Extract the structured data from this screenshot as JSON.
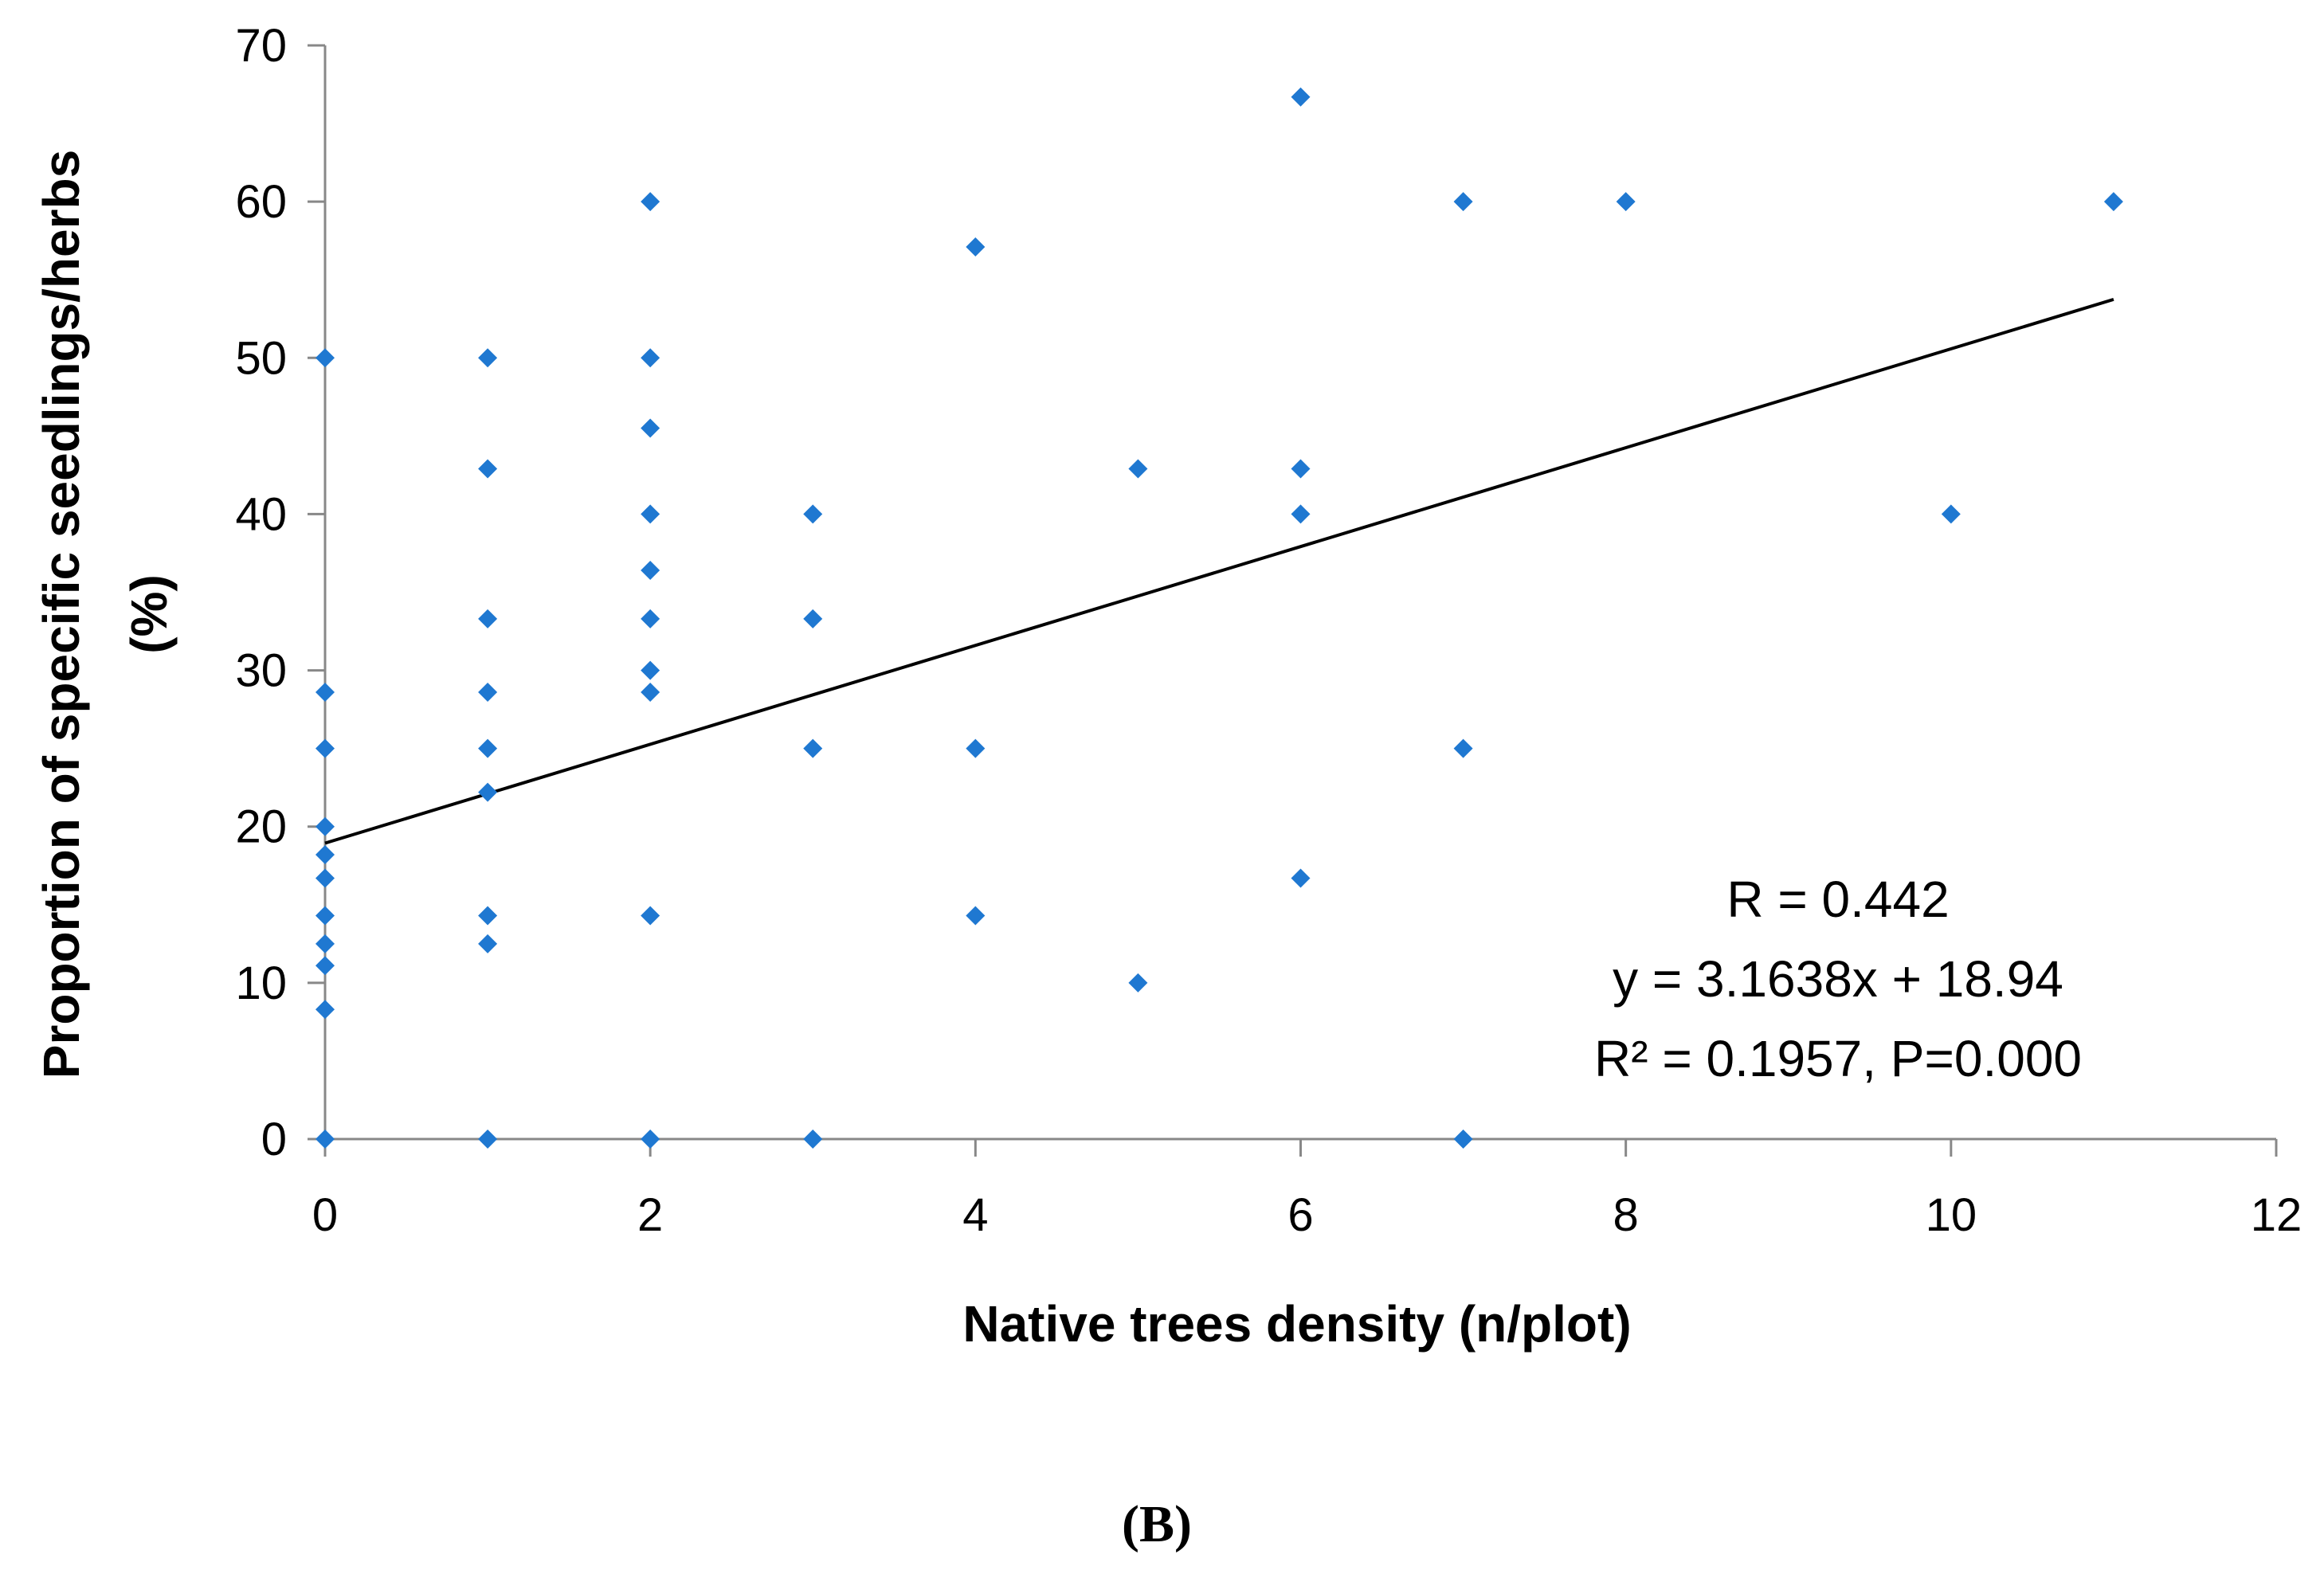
{
  "chart_data": {
    "type": "scatter",
    "title": "",
    "xlabel": "Native trees density (n/plot)",
    "ylabel_line1": "Proportion of specific seedlings/herbs",
    "ylabel_line2": "(%)",
    "xlim": [
      0,
      12
    ],
    "ylim": [
      0,
      70
    ],
    "x_ticks": [
      0,
      2,
      4,
      6,
      8,
      10,
      12
    ],
    "y_ticks": [
      0,
      10,
      20,
      30,
      40,
      50,
      60,
      70
    ],
    "grid": false,
    "marker_color": "#1F78D1",
    "line_color": "#000000",
    "points": [
      [
        0,
        50
      ],
      [
        0,
        28.6
      ],
      [
        0,
        25
      ],
      [
        0,
        20
      ],
      [
        0,
        18.2
      ],
      [
        0,
        16.7
      ],
      [
        0,
        14.3
      ],
      [
        0,
        12.5
      ],
      [
        0,
        11.1
      ],
      [
        0,
        8.3
      ],
      [
        0,
        0
      ],
      [
        1,
        50
      ],
      [
        1,
        42.9
      ],
      [
        1,
        33.3
      ],
      [
        1,
        28.6
      ],
      [
        1,
        25
      ],
      [
        1,
        22.2
      ],
      [
        1,
        14.3
      ],
      [
        1,
        12.5
      ],
      [
        1,
        0
      ],
      [
        2,
        60
      ],
      [
        2,
        50
      ],
      [
        2,
        45.5
      ],
      [
        2,
        40
      ],
      [
        2,
        36.4
      ],
      [
        2,
        33.3
      ],
      [
        2,
        30
      ],
      [
        2,
        28.6
      ],
      [
        2,
        14.3
      ],
      [
        2,
        0
      ],
      [
        3,
        40
      ],
      [
        3,
        33.3
      ],
      [
        3,
        25
      ],
      [
        3,
        0
      ],
      [
        4,
        57.1
      ],
      [
        4,
        25
      ],
      [
        4,
        14.3
      ],
      [
        5,
        42.9
      ],
      [
        5,
        10
      ],
      [
        6,
        66.7
      ],
      [
        6,
        42.9
      ],
      [
        6,
        40
      ],
      [
        6,
        16.7
      ],
      [
        7,
        60
      ],
      [
        7,
        25
      ],
      [
        7,
        0
      ],
      [
        8,
        60
      ],
      [
        10,
        40
      ],
      [
        11,
        60
      ]
    ],
    "trendline": {
      "slope": 3.1638,
      "intercept": 18.94,
      "x_start": 0,
      "x_end": 11
    },
    "annotations": [
      "R = 0.442",
      "y = 3.1638x + 18.94",
      "R² = 0.1957, P=0.000"
    ],
    "panel_label": "(B)"
  }
}
